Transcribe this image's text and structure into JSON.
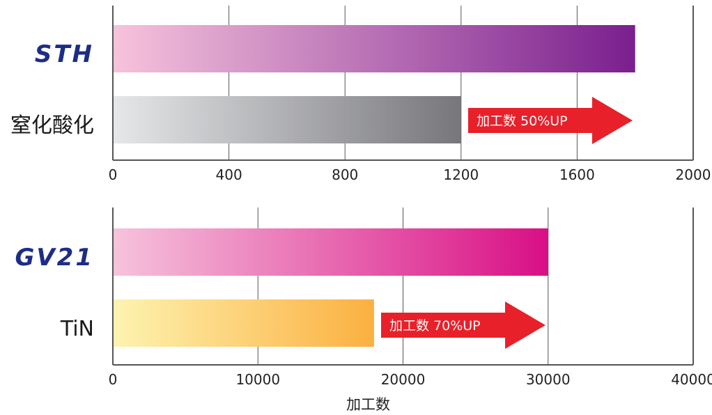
{
  "chart_data": [
    {
      "type": "bar",
      "orientation": "horizontal",
      "categories": [
        "STH",
        "窒化酸化"
      ],
      "values": [
        1800,
        1200
      ],
      "xlim": [
        0,
        2000
      ],
      "xticks": [
        0,
        400,
        800,
        1200,
        1600,
        2000
      ],
      "tick_labels": [
        "0",
        "400",
        "800",
        "1200",
        "1600",
        "2000"
      ],
      "grid": true,
      "bar_colors": [
        [
          "#f6c3dc",
          "#7a1f8e"
        ],
        [
          "#e6e7e9",
          "#77777b"
        ]
      ],
      "category_styles": [
        "brand",
        "normal"
      ],
      "annotation": {
        "text": "加工数 50%UP",
        "color": "#e8202a"
      }
    },
    {
      "type": "bar",
      "orientation": "horizontal",
      "categories": [
        "GV21",
        "TiN"
      ],
      "values": [
        30000,
        18000
      ],
      "xlim": [
        0,
        40000
      ],
      "xticks": [
        0,
        10000,
        20000,
        30000,
        40000
      ],
      "tick_labels": [
        "0",
        "10000",
        "20000",
        "30000",
        "40000"
      ],
      "grid": true,
      "bar_colors": [
        [
          "#f6c3dc",
          "#d90f85"
        ],
        [
          "#fdf3b0",
          "#fbb040"
        ]
      ],
      "category_styles": [
        "brand",
        "normal"
      ],
      "annotation": {
        "text": "加工数 70%UP",
        "color": "#e8202a"
      },
      "xlabel": "加工数"
    }
  ]
}
